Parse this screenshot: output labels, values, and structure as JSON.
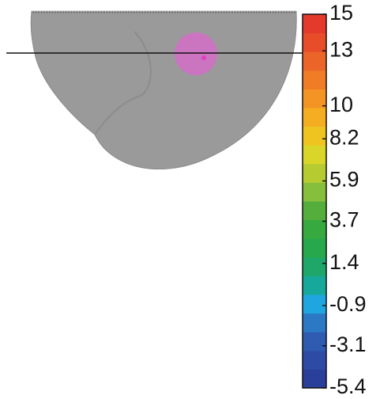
{
  "colorbar": {
    "lim": [
      -5.4,
      15
    ],
    "ticks": [
      15,
      13,
      10,
      8.2,
      5.9,
      3.7,
      1.4,
      -0.9,
      -3.1,
      -5.4
    ],
    "colors": [
      "#2a3f9a",
      "#2d4ba4",
      "#2f5cb0",
      "#2b78c4",
      "#1fa6e0",
      "#17a89c",
      "#1fa76a",
      "#27a84c",
      "#36aa3e",
      "#54ae3c",
      "#86bf3c",
      "#b6cb30",
      "#dad629",
      "#efc421",
      "#f5ad22",
      "#f39424",
      "#f07c26",
      "#ec6528",
      "#e84d2a",
      "#e43a2c"
    ]
  }
}
